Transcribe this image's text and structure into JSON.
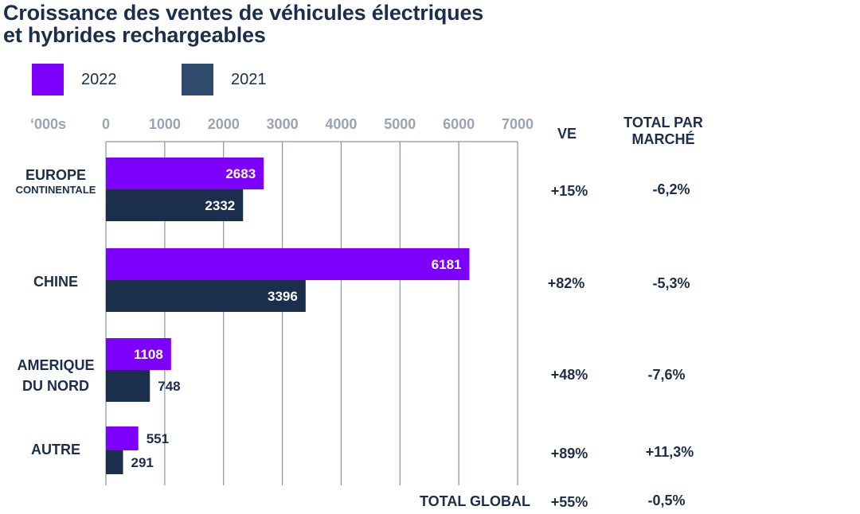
{
  "title": {
    "line1": "Croissance des ventes de véhicules électriques",
    "line2": "et hybrides rechargeables"
  },
  "colors": {
    "series_2022": "#7d00ff",
    "series_2021": "#1b2e4b",
    "legend_2021": "#2f4a6b",
    "axis": "#9aa3b5",
    "grid": "#8a93a6",
    "text": "#1b2e4b"
  },
  "legend": [
    {
      "label": "2022"
    },
    {
      "label": "2021"
    }
  ],
  "columns": {
    "ve_header": "VE",
    "total_header_line1": "TOTAL PAR",
    "total_header_line2": "MARCHÉ"
  },
  "regions": [
    {
      "ve": "+15%",
      "total": "-6,2%"
    },
    {
      "ve": "+82%",
      "total": "-5,3%"
    },
    {
      "ve": "+48%",
      "total": "-7,6%"
    },
    {
      "ve": "+89%",
      "total": "+11,3%"
    }
  ],
  "totals": {
    "label": "TOTAL GLOBAL",
    "ve": "+55%",
    "total": "-0,5%"
  },
  "chart_data": {
    "type": "bar",
    "orientation": "horizontal",
    "unit_label": "‘000s",
    "xlim": [
      0,
      7000
    ],
    "ticks": [
      "0",
      "1000",
      "2000",
      "3000",
      "4000",
      "5000",
      "6000",
      "7000"
    ],
    "tick_values": [
      0,
      1000,
      2000,
      3000,
      4000,
      5000,
      6000,
      7000
    ],
    "categories": [
      {
        "line1": "EUROPE",
        "line2": "CONTINENTALE"
      },
      {
        "line1": "CHINE",
        "line2": ""
      },
      {
        "line1": "AMERIQUE",
        "line2": "DU NORD"
      },
      {
        "line1": "AUTRE",
        "line2": ""
      }
    ],
    "series": [
      {
        "name": "2022",
        "values": [
          2683,
          6181,
          1108,
          551
        ],
        "labels": [
          "2683",
          "6181",
          "1108",
          "551"
        ]
      },
      {
        "name": "2021",
        "values": [
          2332,
          3396,
          748,
          291
        ],
        "labels": [
          "2332",
          "3396",
          "748",
          "291"
        ]
      }
    ],
    "grid": true
  }
}
